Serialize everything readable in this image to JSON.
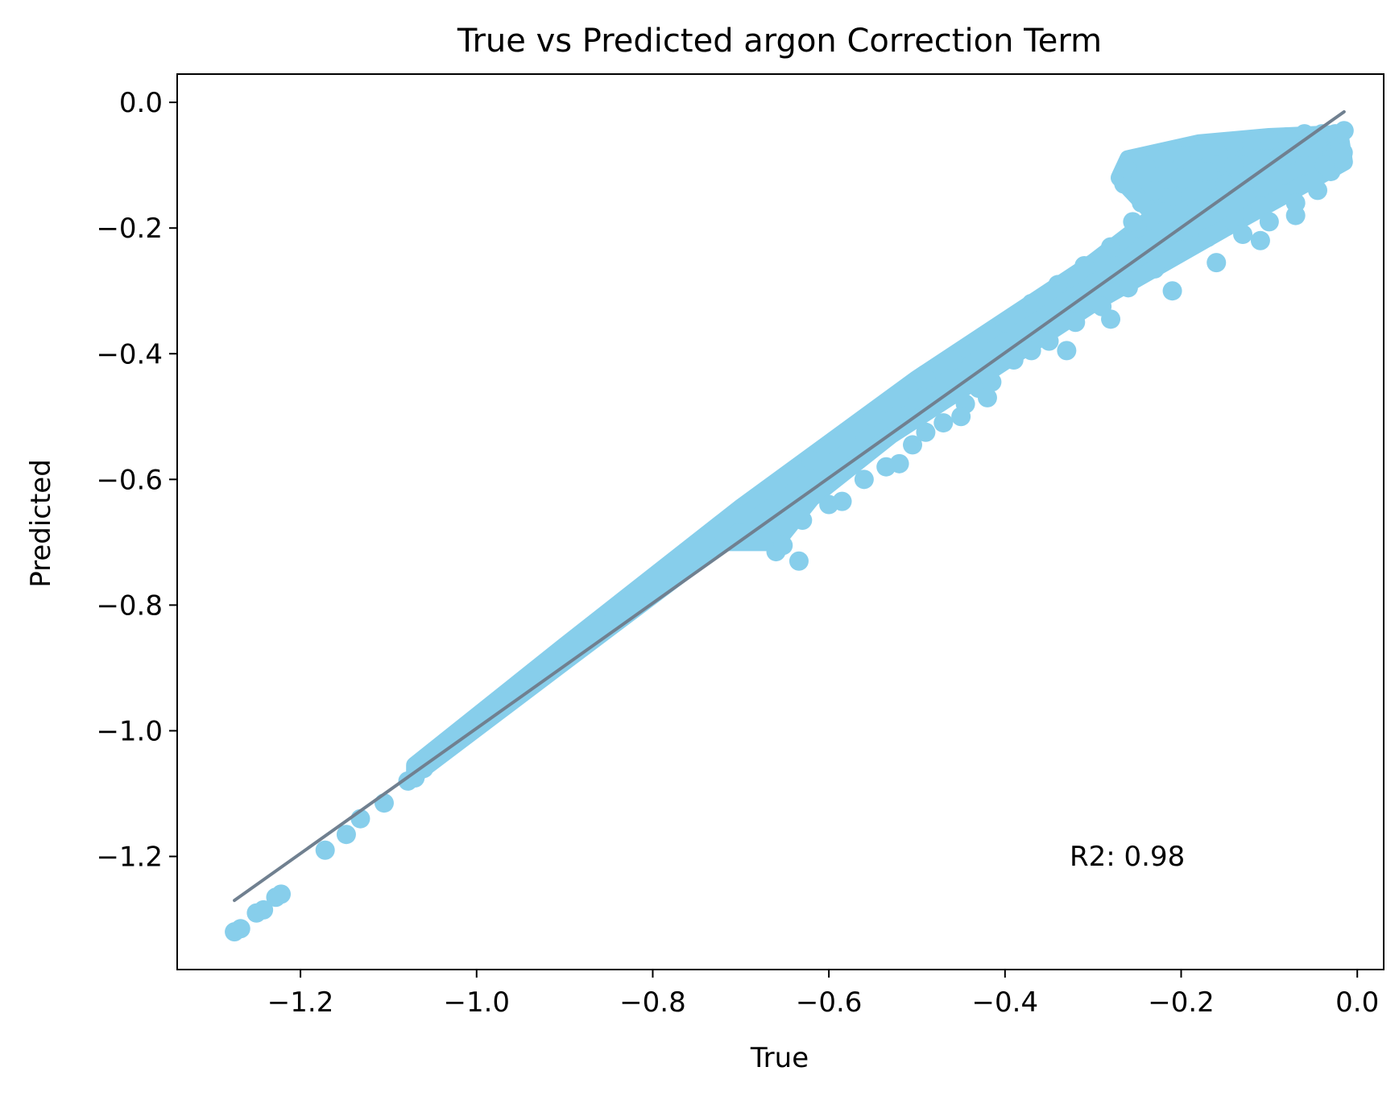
{
  "chart_data": {
    "type": "scatter",
    "title": "True vs Predicted argon Correction Term",
    "xlabel": "True",
    "ylabel": "Predicted",
    "xlim": [
      -1.34,
      0.03
    ],
    "ylim": [
      -1.38,
      0.045
    ],
    "xticks": [
      -1.2,
      -1.0,
      -0.8,
      -0.6,
      -0.4,
      -0.2,
      0.0
    ],
    "xtick_labels": [
      "−1.2",
      "−1.0",
      "−0.8",
      "−0.6",
      "−0.4",
      "−0.2",
      "0.0"
    ],
    "yticks": [
      0.0,
      -0.2,
      -0.4,
      -0.6,
      -0.8,
      -1.0,
      -1.2
    ],
    "ytick_labels": [
      "0.0",
      "−0.2",
      "−0.4",
      "−0.6",
      "−0.8",
      "−1.0",
      "−1.2"
    ],
    "grid": false,
    "annotation": "R2: 0.98",
    "colors": {
      "points": "#87ceeb",
      "fit_line": "#708090",
      "axes": "#000000"
    },
    "fit_line": {
      "x": [
        -1.275,
        -0.015
      ],
      "y": [
        -1.27,
        -0.015
      ]
    },
    "scatter_points": {
      "x": [
        -1.275,
        -1.268,
        -1.25,
        -1.242,
        -1.228,
        -1.222,
        -1.172,
        -1.148,
        -1.132,
        -1.105,
        -1.078,
        -1.07,
        -1.06,
        -1.035,
        -1.0,
        -0.97,
        -0.94,
        -0.9,
        -0.86,
        -0.82,
        -0.78,
        -0.74,
        -0.7,
        -0.66,
        -0.62,
        -0.58,
        -0.55,
        -0.52,
        -0.49,
        -0.46,
        -0.43,
        -0.4,
        -0.37,
        -0.34,
        -0.31,
        -0.28,
        -0.25,
        -0.22,
        -0.19,
        -0.16,
        -0.13,
        -0.1,
        -0.07,
        -0.04,
        -0.02,
        -0.66,
        -0.652,
        -0.634,
        -0.63,
        -0.6,
        -0.585,
        -0.56,
        -0.535,
        -0.52,
        -0.505,
        -0.49,
        -0.47,
        -0.445,
        -0.43,
        -0.415,
        -0.39,
        -0.37,
        -0.35,
        -0.32,
        -0.29,
        -0.26,
        -0.23,
        -0.2,
        -0.17,
        -0.14,
        -0.11,
        -0.08,
        -0.05,
        -0.03,
        -0.45,
        -0.42,
        -0.33,
        -0.28,
        -0.21,
        -0.16,
        -0.11,
        -0.07,
        -0.265,
        -0.262,
        -0.24,
        -0.22,
        -0.2,
        -0.18,
        -0.16,
        -0.14,
        -0.12,
        -0.1,
        -0.08,
        -0.06,
        -0.04,
        -0.025,
        -0.015,
        -0.255,
        -0.23,
        -0.2,
        -0.17,
        -0.14,
        -0.11,
        -0.08,
        -0.05,
        -0.02,
        -0.245,
        -0.21,
        -0.18,
        -0.15,
        -0.12,
        -0.09,
        -0.06,
        -0.03,
        -0.016,
        -0.019,
        -0.037,
        -0.13,
        -0.1,
        -0.07,
        -0.045,
        -0.275
      ],
      "y": [
        -1.32,
        -1.315,
        -1.29,
        -1.285,
        -1.265,
        -1.26,
        -1.19,
        -1.165,
        -1.14,
        -1.115,
        -1.08,
        -1.075,
        -1.06,
        -1.03,
        -0.99,
        -0.955,
        -0.92,
        -0.875,
        -0.83,
        -0.785,
        -0.74,
        -0.695,
        -0.655,
        -0.61,
        -0.57,
        -0.53,
        -0.5,
        -0.47,
        -0.44,
        -0.41,
        -0.38,
        -0.35,
        -0.32,
        -0.29,
        -0.26,
        -0.23,
        -0.2,
        -0.175,
        -0.15,
        -0.125,
        -0.1,
        -0.08,
        -0.065,
        -0.055,
        -0.05,
        -0.715,
        -0.705,
        -0.73,
        -0.665,
        -0.64,
        -0.635,
        -0.6,
        -0.58,
        -0.575,
        -0.545,
        -0.525,
        -0.51,
        -0.48,
        -0.455,
        -0.445,
        -0.41,
        -0.395,
        -0.38,
        -0.35,
        -0.325,
        -0.295,
        -0.265,
        -0.235,
        -0.215,
        -0.19,
        -0.165,
        -0.145,
        -0.125,
        -0.11,
        -0.5,
        -0.47,
        -0.395,
        -0.345,
        -0.3,
        -0.255,
        -0.22,
        -0.18,
        -0.13,
        -0.105,
        -0.1,
        -0.09,
        -0.085,
        -0.075,
        -0.07,
        -0.065,
        -0.06,
        -0.06,
        -0.055,
        -0.05,
        -0.05,
        -0.05,
        -0.045,
        -0.19,
        -0.14,
        -0.12,
        -0.11,
        -0.1,
        -0.09,
        -0.085,
        -0.075,
        -0.07,
        -0.16,
        -0.15,
        -0.14,
        -0.13,
        -0.12,
        -0.11,
        -0.1,
        -0.09,
        -0.08,
        -0.09,
        -0.1,
        -0.21,
        -0.19,
        -0.16,
        -0.14,
        -0.26
      ]
    }
  }
}
